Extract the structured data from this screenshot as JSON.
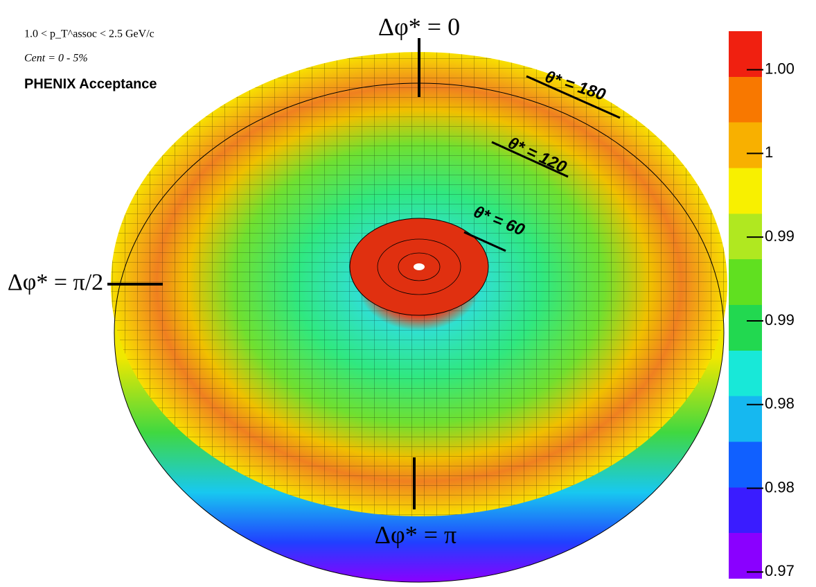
{
  "chart_data": {
    "type": "surface",
    "annotations": [
      "1.0 < p_T^assoc < 2.5 GeV/c",
      "Cent = 0 - 5%",
      "PHENIX Acceptance",
      "Δφ* = 0",
      "θ* = 180",
      "θ* = 120",
      "θ* = 60",
      "Δφ* = π/2",
      "Δφ* = π"
    ],
    "zlim": [
      0.9696,
      1.0023
    ],
    "zticks": [
      {
        "value": 0.97,
        "label": "0.97"
      },
      {
        "value": 0.975,
        "label": "0.98"
      },
      {
        "value": 0.98,
        "label": "0.98"
      },
      {
        "value": 0.985,
        "label": "0.99"
      },
      {
        "value": 0.99,
        "label": "0.99"
      },
      {
        "value": 0.995,
        "label": "1"
      },
      {
        "value": 1.0,
        "label": "1.00"
      }
    ],
    "colormap": [
      "#8a00ff",
      "#3a1cff",
      "#1060ff",
      "#16b8f0",
      "#18e8d8",
      "#22d850",
      "#60e020",
      "#b0e820",
      "#f8f000",
      "#f8b000",
      "#f87800",
      "#f02010"
    ]
  }
}
